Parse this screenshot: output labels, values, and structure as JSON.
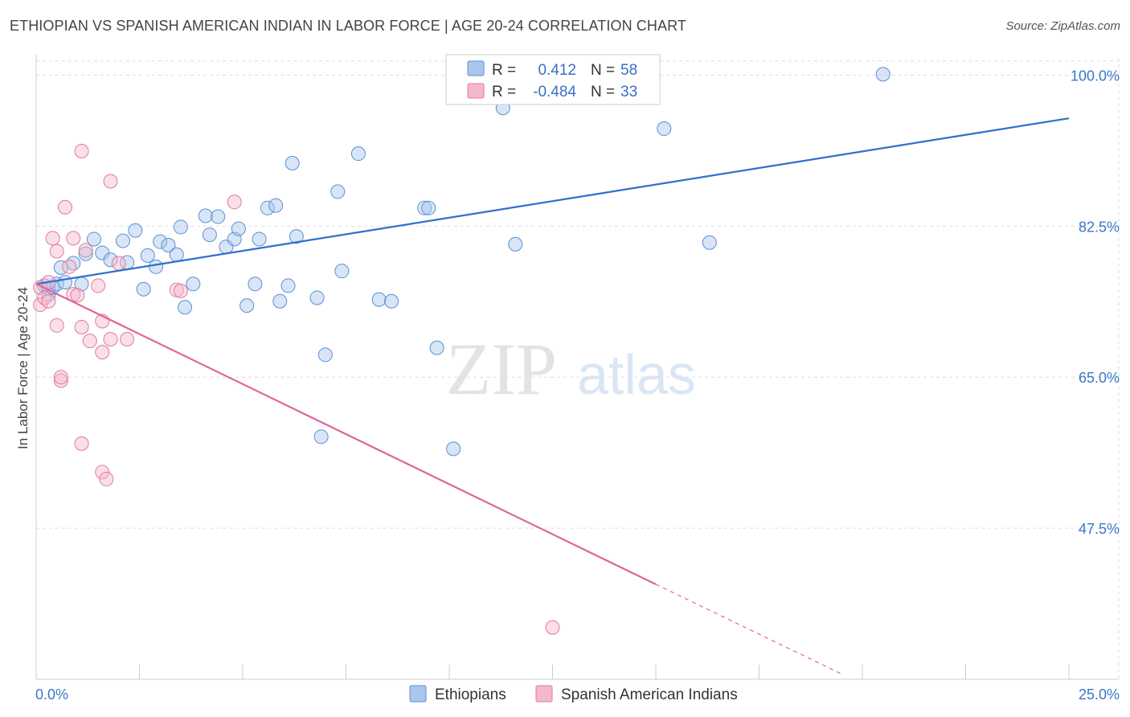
{
  "title": "ETHIOPIAN VS SPANISH AMERICAN INDIAN IN LABOR FORCE | AGE 20-24 CORRELATION CHART",
  "source": "Source: ZipAtlas.com",
  "watermark": {
    "zip": "ZIP",
    "atlas": "atlas"
  },
  "colors": {
    "blue_fill": "#a9c6ec",
    "blue_stroke": "#5b8fd6",
    "blue_line": "#2f6fcc",
    "pink_fill": "#f4b8cb",
    "pink_stroke": "#e07a9c",
    "pink_line": "#e0659a",
    "grid": "#dddddd",
    "axis_text": "#3a78c6"
  },
  "legend": {
    "r_label": "R =",
    "n_label": "N =",
    "rows": [
      {
        "r": "0.412",
        "n": "58"
      },
      {
        "r": "-0.484",
        "n": "33"
      }
    ]
  },
  "chart_data": {
    "type": "scatter",
    "xlabel": "",
    "ylabel": "In Labor Force | Age 20-24",
    "xlim": [
      0,
      25
    ],
    "ylim": [
      30,
      102
    ],
    "x_tick_labels": [
      {
        "value": 0,
        "label": "0.0%"
      },
      {
        "value": 25,
        "label": "25.0%"
      }
    ],
    "y_ticks": [
      {
        "value": 100,
        "label": "100.0%"
      },
      {
        "value": 82.5,
        "label": "82.5%"
      },
      {
        "value": 65,
        "label": "65.0%"
      },
      {
        "value": 47.5,
        "label": "47.5%"
      }
    ],
    "series": [
      {
        "name": "Ethiopians",
        "trend": {
          "x": [
            0,
            25
          ],
          "y": [
            75.8,
            95.0
          ]
        },
        "points": [
          [
            0.2,
            75.6
          ],
          [
            0.3,
            75.3
          ],
          [
            0.3,
            74.6
          ],
          [
            0.4,
            75.4
          ],
          [
            0.5,
            75.8
          ],
          [
            0.6,
            77.7
          ],
          [
            0.7,
            76.0
          ],
          [
            0.9,
            78.2
          ],
          [
            1.1,
            75.8
          ],
          [
            1.2,
            79.3
          ],
          [
            1.4,
            81.0
          ],
          [
            1.6,
            79.4
          ],
          [
            1.8,
            78.6
          ],
          [
            2.1,
            80.8
          ],
          [
            2.2,
            78.3
          ],
          [
            2.4,
            82.0
          ],
          [
            2.6,
            75.2
          ],
          [
            2.7,
            79.1
          ],
          [
            2.9,
            77.8
          ],
          [
            3.0,
            80.7
          ],
          [
            3.2,
            80.3
          ],
          [
            3.4,
            79.2
          ],
          [
            3.5,
            82.4
          ],
          [
            3.6,
            73.1
          ],
          [
            3.8,
            75.8
          ],
          [
            4.1,
            83.7
          ],
          [
            4.2,
            81.5
          ],
          [
            4.4,
            83.6
          ],
          [
            4.6,
            80.1
          ],
          [
            4.8,
            81.0
          ],
          [
            4.9,
            82.2
          ],
          [
            5.1,
            73.3
          ],
          [
            5.3,
            75.8
          ],
          [
            5.4,
            81.0
          ],
          [
            5.6,
            84.6
          ],
          [
            5.8,
            84.9
          ],
          [
            5.9,
            73.8
          ],
          [
            6.1,
            75.6
          ],
          [
            6.2,
            89.8
          ],
          [
            6.3,
            81.3
          ],
          [
            6.8,
            74.2
          ],
          [
            6.9,
            58.1
          ],
          [
            7.0,
            67.6
          ],
          [
            7.3,
            86.5
          ],
          [
            7.4,
            77.3
          ],
          [
            7.8,
            90.9
          ],
          [
            8.3,
            74.0
          ],
          [
            8.6,
            73.8
          ],
          [
            9.4,
            84.6
          ],
          [
            9.5,
            84.6
          ],
          [
            9.7,
            68.4
          ],
          [
            10.1,
            56.7
          ],
          [
            11.3,
            96.2
          ],
          [
            11.6,
            80.4
          ],
          [
            12.6,
            99.8
          ],
          [
            15.2,
            93.8
          ],
          [
            16.3,
            80.6
          ],
          [
            20.5,
            100.1
          ]
        ]
      },
      {
        "name": "Spanish American Indians",
        "trend": {
          "x": [
            0,
            15
          ],
          "y": [
            75.8,
            41.0
          ]
        },
        "trend_dashed": {
          "x": [
            15,
            19.5
          ],
          "y": [
            41.0,
            30.6
          ]
        },
        "points": [
          [
            0.1,
            75.4
          ],
          [
            0.1,
            73.4
          ],
          [
            0.2,
            74.2
          ],
          [
            0.3,
            73.8
          ],
          [
            0.3,
            76.0
          ],
          [
            0.4,
            81.1
          ],
          [
            0.5,
            71.0
          ],
          [
            0.5,
            79.6
          ],
          [
            0.6,
            64.6
          ],
          [
            0.6,
            65.0
          ],
          [
            0.7,
            84.7
          ],
          [
            0.8,
            77.8
          ],
          [
            0.9,
            74.6
          ],
          [
            0.9,
            81.1
          ],
          [
            1.0,
            74.5
          ],
          [
            1.1,
            57.3
          ],
          [
            1.1,
            70.8
          ],
          [
            1.1,
            91.2
          ],
          [
            1.2,
            79.7
          ],
          [
            1.3,
            69.2
          ],
          [
            1.5,
            75.6
          ],
          [
            1.6,
            54.0
          ],
          [
            1.6,
            67.9
          ],
          [
            1.6,
            71.5
          ],
          [
            1.7,
            53.2
          ],
          [
            1.8,
            87.7
          ],
          [
            1.8,
            69.4
          ],
          [
            2.0,
            78.2
          ],
          [
            2.2,
            69.4
          ],
          [
            3.4,
            75.1
          ],
          [
            3.5,
            75.0
          ],
          [
            4.8,
            85.3
          ],
          [
            12.5,
            36.0
          ]
        ]
      }
    ]
  }
}
